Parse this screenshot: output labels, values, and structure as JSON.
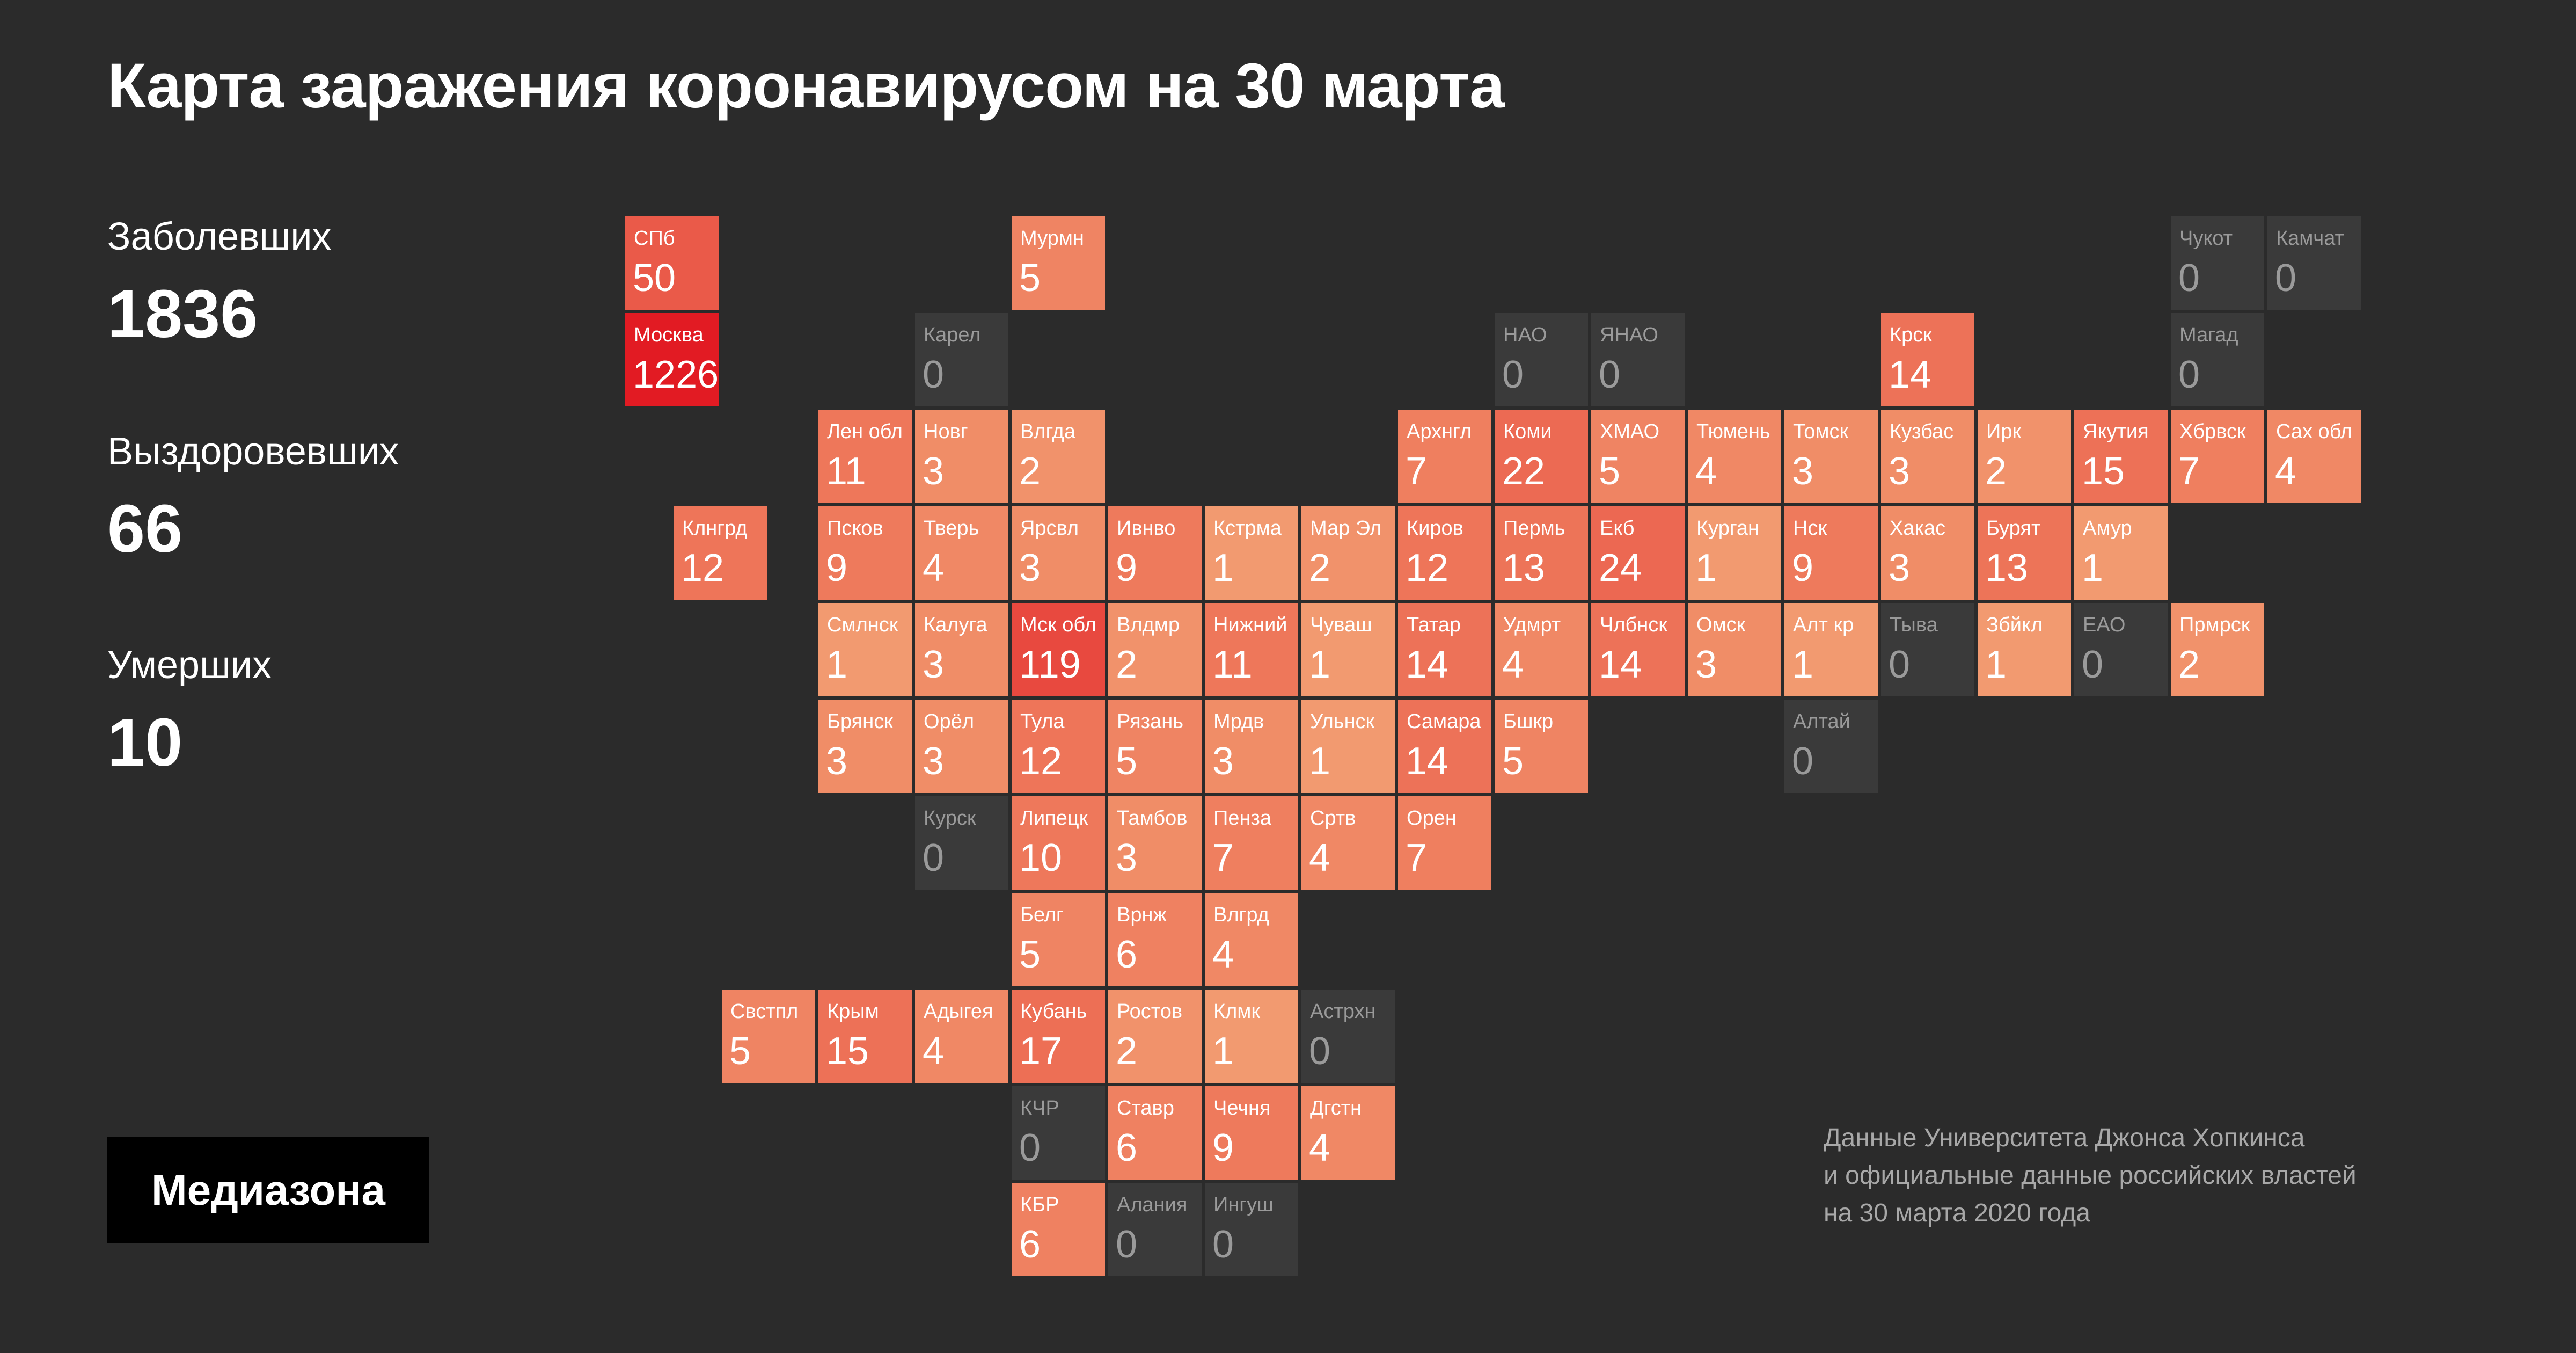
{
  "title": "Карта заражения коронавирусом на 30 марта",
  "stats": [
    {
      "label": "Заболевших",
      "value": "1836"
    },
    {
      "label": "Выздоровевших",
      "value": "66"
    },
    {
      "label": "Умерших",
      "value": "10"
    }
  ],
  "logo_text": "Медиазона",
  "source_lines": [
    "Данные Университета Джонса Хопкинса",
    "и официальные данные российских властей",
    "на 30 марта 2020 года"
  ],
  "colors": {
    "background": "#2b2b2b",
    "empty_tile": "#3a3a3a",
    "scale_low": "#f4a878",
    "scale_high": "#e21b23"
  },
  "regions": [
    {
      "name": "СПб",
      "value": 50,
      "row": 0,
      "col": 0
    },
    {
      "name": "Мурмн",
      "value": 5,
      "row": 0,
      "col": 4
    },
    {
      "name": "Чукот",
      "value": 0,
      "row": 0,
      "col": 16
    },
    {
      "name": "Камчат",
      "value": 0,
      "row": 0,
      "col": 17
    },
    {
      "name": "Москва",
      "value": 1226,
      "row": 1,
      "col": 0
    },
    {
      "name": "Карел",
      "value": 0,
      "row": 1,
      "col": 3
    },
    {
      "name": "НАО",
      "value": 0,
      "row": 1,
      "col": 9
    },
    {
      "name": "ЯНАО",
      "value": 0,
      "row": 1,
      "col": 10
    },
    {
      "name": "Крск",
      "value": 14,
      "row": 1,
      "col": 13
    },
    {
      "name": "Магад",
      "value": 0,
      "row": 1,
      "col": 16
    },
    {
      "name": "Лен обл",
      "value": 11,
      "row": 2,
      "col": 2
    },
    {
      "name": "Новг",
      "value": 3,
      "row": 2,
      "col": 3
    },
    {
      "name": "Влгда",
      "value": 2,
      "row": 2,
      "col": 4
    },
    {
      "name": "Архнгл",
      "value": 7,
      "row": 2,
      "col": 8
    },
    {
      "name": "Коми",
      "value": 22,
      "row": 2,
      "col": 9
    },
    {
      "name": "ХМАО",
      "value": 5,
      "row": 2,
      "col": 10
    },
    {
      "name": "Тюмень",
      "value": 4,
      "row": 2,
      "col": 11
    },
    {
      "name": "Томск",
      "value": 3,
      "row": 2,
      "col": 12
    },
    {
      "name": "Кузбас",
      "value": 3,
      "row": 2,
      "col": 13
    },
    {
      "name": "Ирк",
      "value": 2,
      "row": 2,
      "col": 14
    },
    {
      "name": "Якутия",
      "value": 15,
      "row": 2,
      "col": 15
    },
    {
      "name": "Хбрвск",
      "value": 7,
      "row": 2,
      "col": 16
    },
    {
      "name": "Сах обл",
      "value": 4,
      "row": 2,
      "col": 17
    },
    {
      "name": "Клнгрд",
      "value": 12,
      "row": 3,
      "col": 0.5
    },
    {
      "name": "Псков",
      "value": 9,
      "row": 3,
      "col": 2
    },
    {
      "name": "Тверь",
      "value": 4,
      "row": 3,
      "col": 3
    },
    {
      "name": "Ярсвл",
      "value": 3,
      "row": 3,
      "col": 4
    },
    {
      "name": "Ивнво",
      "value": 9,
      "row": 3,
      "col": 5
    },
    {
      "name": "Кстрма",
      "value": 1,
      "row": 3,
      "col": 6
    },
    {
      "name": "Мар Эл",
      "value": 2,
      "row": 3,
      "col": 7
    },
    {
      "name": "Киров",
      "value": 12,
      "row": 3,
      "col": 8
    },
    {
      "name": "Пермь",
      "value": 13,
      "row": 3,
      "col": 9
    },
    {
      "name": "Екб",
      "value": 24,
      "row": 3,
      "col": 10
    },
    {
      "name": "Курган",
      "value": 1,
      "row": 3,
      "col": 11
    },
    {
      "name": "Нск",
      "value": 9,
      "row": 3,
      "col": 12
    },
    {
      "name": "Хакас",
      "value": 3,
      "row": 3,
      "col": 13
    },
    {
      "name": "Бурят",
      "value": 13,
      "row": 3,
      "col": 14
    },
    {
      "name": "Амур",
      "value": 1,
      "row": 3,
      "col": 15
    },
    {
      "name": "Смлнск",
      "value": 1,
      "row": 4,
      "col": 2
    },
    {
      "name": "Калуга",
      "value": 3,
      "row": 4,
      "col": 3
    },
    {
      "name": "Мск обл",
      "value": 119,
      "row": 4,
      "col": 4
    },
    {
      "name": "Влдмр",
      "value": 2,
      "row": 4,
      "col": 5
    },
    {
      "name": "Нижний",
      "value": 11,
      "row": 4,
      "col": 6
    },
    {
      "name": "Чуваш",
      "value": 1,
      "row": 4,
      "col": 7
    },
    {
      "name": "Татар",
      "value": 14,
      "row": 4,
      "col": 8
    },
    {
      "name": "Удмрт",
      "value": 4,
      "row": 4,
      "col": 9
    },
    {
      "name": "Члбнск",
      "value": 14,
      "row": 4,
      "col": 10
    },
    {
      "name": "Омск",
      "value": 3,
      "row": 4,
      "col": 11
    },
    {
      "name": "Алт кр",
      "value": 1,
      "row": 4,
      "col": 12
    },
    {
      "name": "Тыва",
      "value": 0,
      "row": 4,
      "col": 13
    },
    {
      "name": "Збйкл",
      "value": 1,
      "row": 4,
      "col": 14
    },
    {
      "name": "ЕАО",
      "value": 0,
      "row": 4,
      "col": 15
    },
    {
      "name": "Прмрск",
      "value": 2,
      "row": 4,
      "col": 16
    },
    {
      "name": "Брянск",
      "value": 3,
      "row": 5,
      "col": 2
    },
    {
      "name": "Орёл",
      "value": 3,
      "row": 5,
      "col": 3
    },
    {
      "name": "Тула",
      "value": 12,
      "row": 5,
      "col": 4
    },
    {
      "name": "Рязань",
      "value": 5,
      "row": 5,
      "col": 5
    },
    {
      "name": "Мрдв",
      "value": 3,
      "row": 5,
      "col": 6
    },
    {
      "name": "Ульнск",
      "value": 1,
      "row": 5,
      "col": 7
    },
    {
      "name": "Самара",
      "value": 14,
      "row": 5,
      "col": 8
    },
    {
      "name": "Бшкр",
      "value": 5,
      "row": 5,
      "col": 9
    },
    {
      "name": "Алтай",
      "value": 0,
      "row": 5,
      "col": 12
    },
    {
      "name": "Курск",
      "value": 0,
      "row": 6,
      "col": 3
    },
    {
      "name": "Липецк",
      "value": 10,
      "row": 6,
      "col": 4
    },
    {
      "name": "Тамбов",
      "value": 3,
      "row": 6,
      "col": 5
    },
    {
      "name": "Пенза",
      "value": 7,
      "row": 6,
      "col": 6
    },
    {
      "name": "Сртв",
      "value": 4,
      "row": 6,
      "col": 7
    },
    {
      "name": "Орен",
      "value": 7,
      "row": 6,
      "col": 8
    },
    {
      "name": "Белг",
      "value": 5,
      "row": 7,
      "col": 4
    },
    {
      "name": "Врнж",
      "value": 6,
      "row": 7,
      "col": 5
    },
    {
      "name": "Влгрд",
      "value": 4,
      "row": 7,
      "col": 6
    },
    {
      "name": "Свстпл",
      "value": 5,
      "row": 8,
      "col": 1
    },
    {
      "name": "Крым",
      "value": 15,
      "row": 8,
      "col": 2
    },
    {
      "name": "Адыгея",
      "value": 4,
      "row": 8,
      "col": 3
    },
    {
      "name": "Кубань",
      "value": 17,
      "row": 8,
      "col": 4
    },
    {
      "name": "Ростов",
      "value": 2,
      "row": 8,
      "col": 5
    },
    {
      "name": "Клмк",
      "value": 1,
      "row": 8,
      "col": 6
    },
    {
      "name": "Астрхн",
      "value": 0,
      "row": 8,
      "col": 7
    },
    {
      "name": "КЧР",
      "value": 0,
      "row": 9,
      "col": 4
    },
    {
      "name": "Ставр",
      "value": 6,
      "row": 9,
      "col": 5
    },
    {
      "name": "Чечня",
      "value": 9,
      "row": 9,
      "col": 6
    },
    {
      "name": "Дгстн",
      "value": 4,
      "row": 9,
      "col": 7
    },
    {
      "name": "КБР",
      "value": 6,
      "row": 10,
      "col": 4
    },
    {
      "name": "Алания",
      "value": 0,
      "row": 10,
      "col": 5
    },
    {
      "name": "Ингуш",
      "value": 0,
      "row": 10,
      "col": 6
    }
  ]
}
